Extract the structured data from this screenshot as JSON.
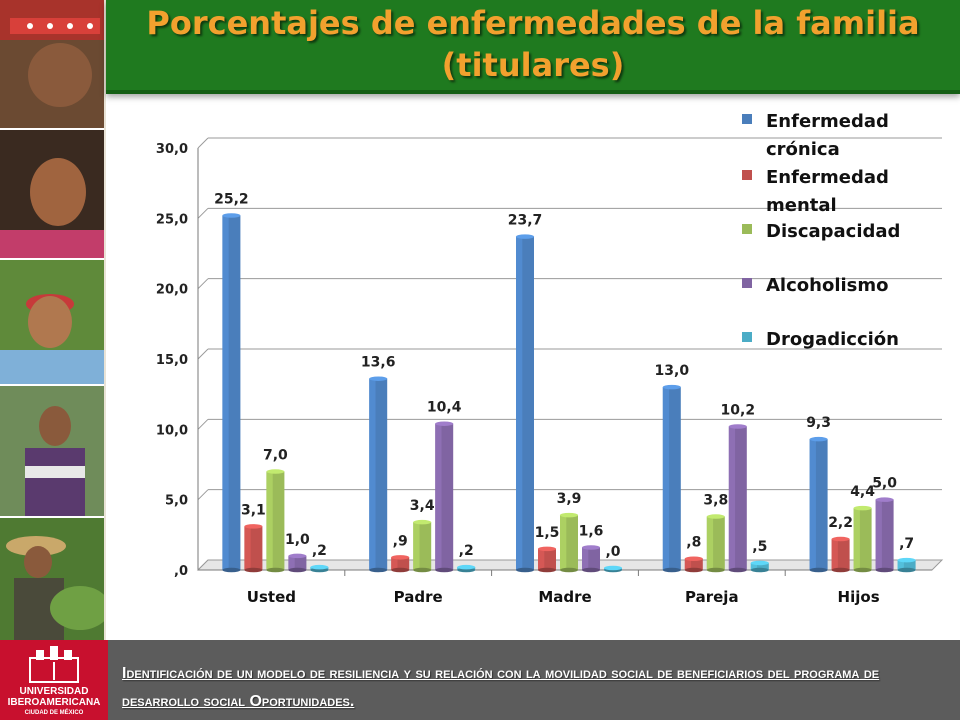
{
  "title": "Porcentajes de enfermedades de la familia\n(titulares)",
  "footer": {
    "text": "Identificación de un modelo de resiliencia y su relación con la movilidad social de beneficiarios del programa de desarrollo social Oportunidades.",
    "logo_line1": "UNIVERSIDAD",
    "logo_line2": "IBEROAMERICANA",
    "logo_line3": "CIUDAD DE MÉXICO"
  },
  "colors": {
    "title_bar": "#1f7a1f",
    "title_text": "#f2a12e",
    "footer_bar": "#5c5c5c",
    "logo_red": "#c8102e"
  },
  "chart_data": {
    "type": "bar",
    "title": "",
    "xlabel": "",
    "ylabel": "",
    "categories": [
      "Usted",
      "Padre",
      "Madre",
      "Pareja",
      "Hijos"
    ],
    "ylim": [
      0,
      30
    ],
    "yticks": [
      ",0",
      "5,0",
      "10,0",
      "15,0",
      "20,0",
      "25,0",
      "30,0"
    ],
    "grid": true,
    "legend_position": "top-right",
    "series": [
      {
        "name": "Enfermedad crónica",
        "color": "#4a7ebb",
        "values": [
          25.2,
          13.6,
          23.7,
          13.0,
          9.3
        ],
        "labels": [
          "25,2",
          "13,6",
          "23,7",
          "13,0",
          "9,3"
        ]
      },
      {
        "name": "Enfermedad mental",
        "color": "#c0504d",
        "values": [
          3.1,
          0.9,
          1.5,
          0.8,
          2.2
        ],
        "labels": [
          "3,1",
          ",9",
          "1,5",
          ",8",
          "2,2"
        ]
      },
      {
        "name": "Discapacidad",
        "color": "#9bbb59",
        "values": [
          7.0,
          3.4,
          3.9,
          3.8,
          4.4
        ],
        "labels": [
          "7,0",
          "3,4",
          "3,9",
          "3,8",
          "4,4"
        ]
      },
      {
        "name": "Alcoholismo",
        "color": "#8064a2",
        "values": [
          1.0,
          10.4,
          1.6,
          10.2,
          5.0
        ],
        "labels": [
          "1,0",
          "10,4",
          "1,6",
          "10,2",
          "5,0"
        ]
      },
      {
        "name": "Drogadicción",
        "color": "#4bacc6",
        "values": [
          0.2,
          0.2,
          0.0,
          0.5,
          0.7
        ],
        "labels": [
          ",2",
          ",2",
          ",0",
          ",5",
          ",7"
        ]
      }
    ]
  }
}
